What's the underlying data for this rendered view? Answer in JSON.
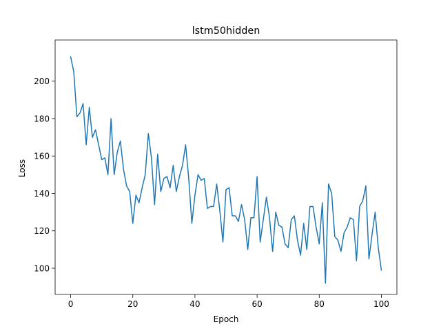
{
  "chart_data": {
    "type": "line",
    "title": "lstm50hidden",
    "xlabel": "Epoch",
    "ylabel": "Loss",
    "xlim": [
      -5,
      105
    ],
    "ylim": [
      86,
      222
    ],
    "xticks": [
      0,
      20,
      40,
      60,
      80,
      100
    ],
    "yticks": [
      100,
      120,
      140,
      160,
      180,
      200
    ],
    "grid": false,
    "series": [
      {
        "color": "#1f77b4",
        "x": [
          0,
          1,
          2,
          3,
          4,
          5,
          6,
          7,
          8,
          9,
          10,
          11,
          12,
          13,
          14,
          15,
          16,
          17,
          18,
          19,
          20,
          21,
          22,
          23,
          24,
          25,
          26,
          27,
          28,
          29,
          30,
          31,
          32,
          33,
          34,
          35,
          36,
          37,
          38,
          39,
          40,
          41,
          42,
          43,
          44,
          45,
          46,
          47,
          48,
          49,
          50,
          51,
          52,
          53,
          54,
          55,
          56,
          57,
          58,
          59,
          60,
          61,
          62,
          63,
          64,
          65,
          66,
          67,
          68,
          69,
          70,
          71,
          72,
          73,
          74,
          75,
          76,
          77,
          78,
          79,
          80,
          81,
          82,
          83,
          84,
          85,
          86,
          87,
          88,
          89,
          90,
          91,
          92,
          93,
          94,
          95,
          96,
          97,
          98,
          99,
          100
        ],
        "y": [
          213,
          205,
          181,
          183,
          188,
          166,
          186,
          170,
          174,
          166,
          158,
          159,
          150,
          180,
          150,
          162,
          168,
          153,
          144,
          141,
          124,
          139,
          135,
          143,
          150,
          172,
          159,
          134,
          161,
          141,
          148,
          149,
          143,
          155,
          141,
          149,
          155,
          166,
          148,
          124,
          139,
          150,
          147,
          148,
          132,
          133,
          133,
          145,
          131,
          114,
          142,
          143,
          128,
          128,
          125,
          134,
          126,
          110,
          127,
          127,
          149,
          114,
          126,
          138,
          127,
          109,
          130,
          123,
          122,
          113,
          111,
          126,
          128,
          115,
          107,
          124,
          110,
          133,
          133,
          122,
          113,
          135,
          92,
          145,
          140,
          117,
          115,
          109,
          119,
          122,
          127,
          126,
          104,
          133,
          136,
          144,
          105,
          118,
          130,
          111,
          99
        ]
      }
    ]
  }
}
